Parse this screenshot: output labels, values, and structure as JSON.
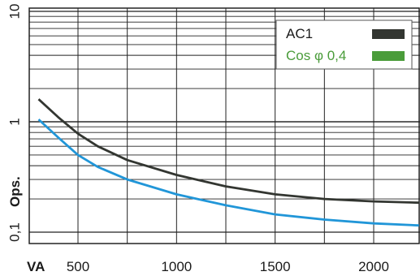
{
  "chart_data": {
    "type": "line",
    "xlabel": "VA",
    "ylabel": "Ops.",
    "x_ticks": [
      "500",
      "1000",
      "1500",
      "2000"
    ],
    "y_ticks": [
      "0,1",
      "1",
      "10"
    ],
    "y_scale": "log",
    "xlim": [
      300,
      2230
    ],
    "ylim": [
      0.1,
      10
    ],
    "grid": true,
    "legend_position": "top-right",
    "series": [
      {
        "name": "AC1",
        "color": "#333631",
        "x": [
          300,
          400,
          500,
          600,
          750,
          1000,
          1250,
          1500,
          1750,
          2000,
          2230
        ],
        "y": [
          1.6,
          1.1,
          0.78,
          0.6,
          0.45,
          0.33,
          0.26,
          0.22,
          0.2,
          0.19,
          0.185
        ]
      },
      {
        "name": "Cos φ 0,4",
        "color": "#2196d8",
        "legend_color": "#4a9c3a",
        "x": [
          300,
          400,
          500,
          600,
          750,
          1000,
          1250,
          1500,
          1750,
          2000,
          2230
        ],
        "y": [
          1.05,
          0.72,
          0.5,
          0.39,
          0.3,
          0.22,
          0.175,
          0.145,
          0.13,
          0.12,
          0.115
        ]
      }
    ]
  }
}
